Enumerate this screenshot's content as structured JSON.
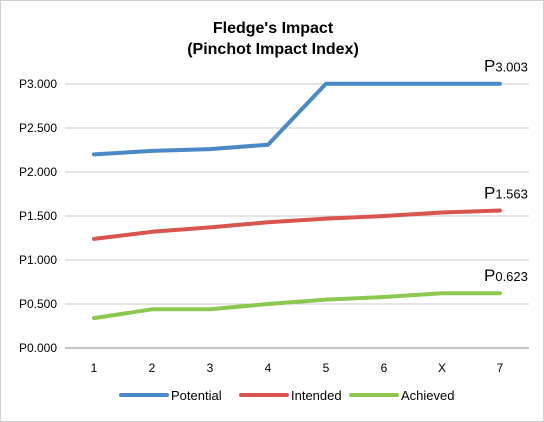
{
  "chart_data": {
    "type": "line",
    "title": "Fledge's Impact",
    "subtitle": "(Pinchot Impact Index)",
    "xlabel": "",
    "ylabel": "",
    "categories": [
      "1",
      "2",
      "3",
      "4",
      "5",
      "6",
      "X",
      "7"
    ],
    "ylim": [
      0,
      3
    ],
    "yticks": [
      0,
      0.5,
      1,
      1.5,
      2,
      2.5,
      3
    ],
    "ytick_labels": [
      "P0.000",
      "P0.500",
      "P1.000",
      "P1.500",
      "P2.000",
      "P2.500",
      "P3.000"
    ],
    "grid": true,
    "legend_position": "bottom",
    "series": [
      {
        "name": "Potential",
        "color": "#4a89c8",
        "values": [
          2.2,
          2.24,
          2.26,
          2.31,
          3.003,
          3.003,
          3.003,
          3.003
        ],
        "end_label_prefix": "P",
        "end_label_value": "3.003"
      },
      {
        "name": "Intended",
        "color": "#d9534f",
        "values": [
          1.24,
          1.32,
          1.37,
          1.43,
          1.47,
          1.5,
          1.54,
          1.563
        ],
        "end_label_prefix": "P",
        "end_label_value": "1.563"
      },
      {
        "name": "Achieved",
        "color": "#8cc850",
        "values": [
          0.34,
          0.44,
          0.44,
          0.5,
          0.55,
          0.58,
          0.623,
          0.623
        ],
        "end_label_prefix": "P",
        "end_label_value": "0.623"
      }
    ]
  }
}
